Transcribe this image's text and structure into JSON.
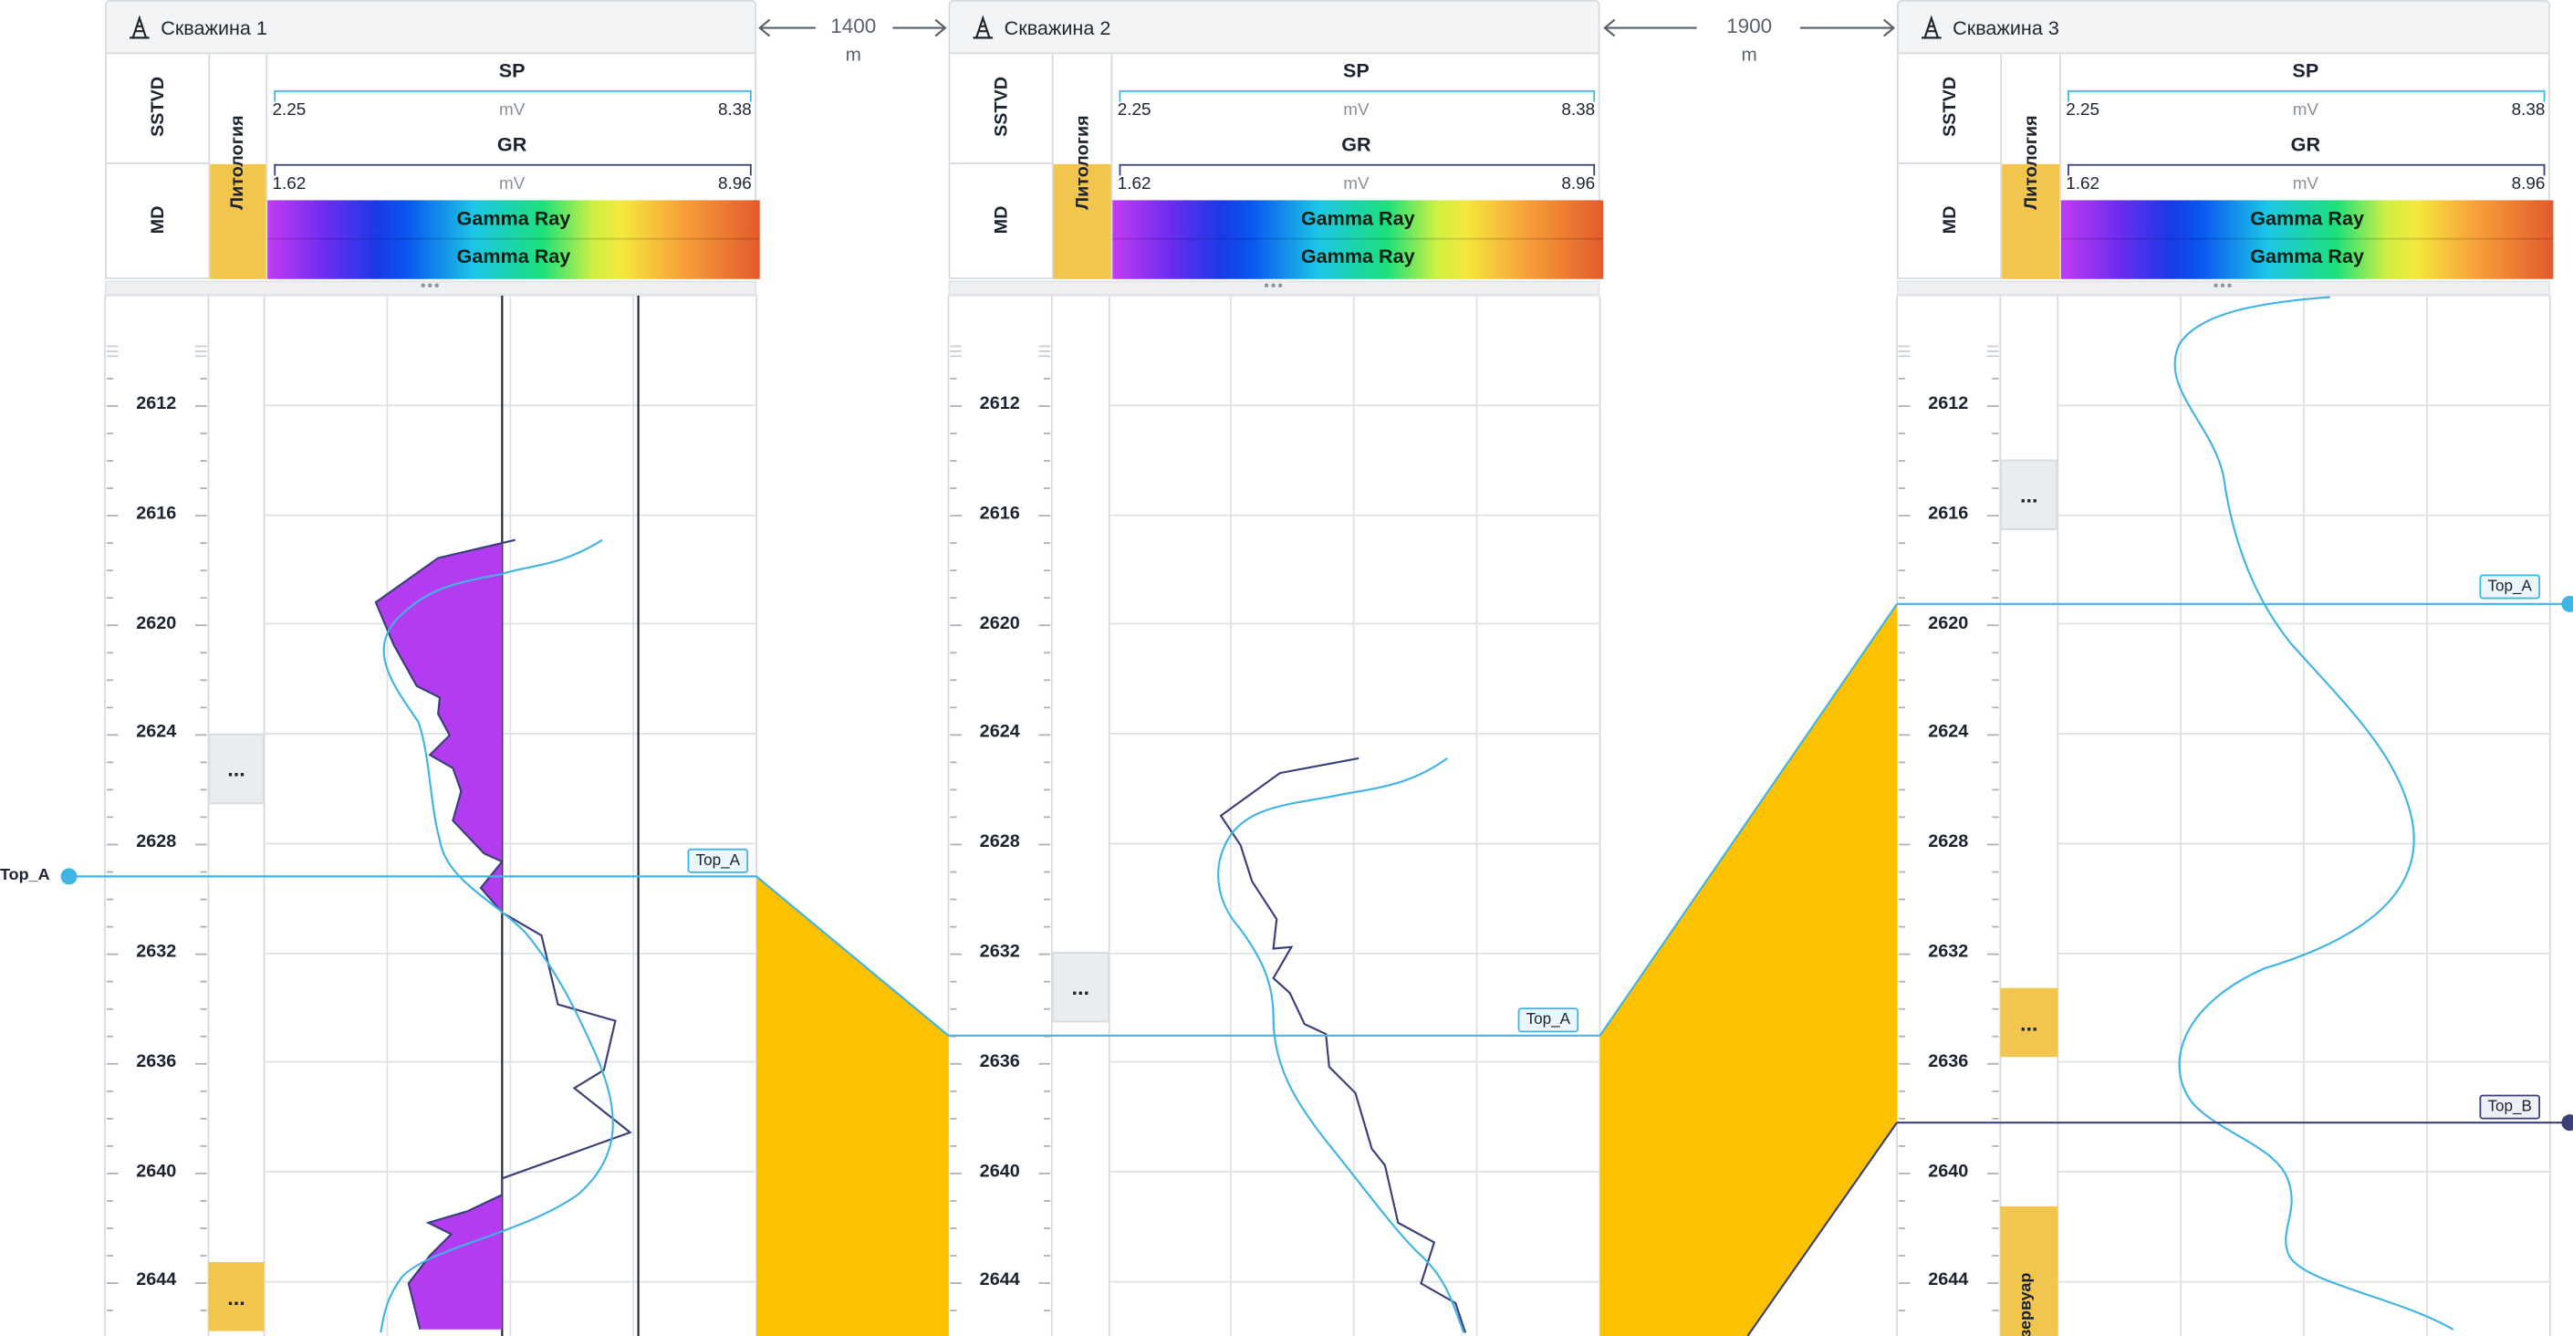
{
  "wells": [
    {
      "title": "Скважина 1",
      "track_labels": {
        "depth_top": "SSTVD",
        "depth_bottom": "MD",
        "lithology": "Литология"
      },
      "curves": [
        {
          "name": "SP",
          "min": "2.25",
          "max": "8.38",
          "unit": "mV"
        },
        {
          "name": "GR",
          "min": "1.62",
          "max": "8.96",
          "unit": "mV"
        }
      ],
      "gradient_labels": [
        "Gamma Ray",
        "Gamma Ray"
      ],
      "depth_ticks": [
        "2612",
        "2616",
        "2620",
        "2624",
        "2628",
        "2632",
        "2636",
        "2640",
        "2644"
      ],
      "lith_blocks": [
        "...",
        "..."
      ],
      "top_tag": "Top_A",
      "side_tag": "Top_A"
    },
    {
      "title": "Скважина 2",
      "track_labels": {
        "depth_top": "SSTVD",
        "depth_bottom": "MD",
        "lithology": "Литология"
      },
      "curves": [
        {
          "name": "SP",
          "min": "2.25",
          "max": "8.38",
          "unit": "mV"
        },
        {
          "name": "GR",
          "min": "1.62",
          "max": "8.96",
          "unit": "mV"
        }
      ],
      "gradient_labels": [
        "Gamma Ray",
        "Gamma Ray"
      ],
      "depth_ticks": [
        "2612",
        "2616",
        "2620",
        "2624",
        "2628",
        "2632",
        "2636",
        "2640",
        "2644"
      ],
      "lith_blocks": [
        "..."
      ],
      "top_tag": "Top_A"
    },
    {
      "title": "Скважина 3",
      "track_labels": {
        "depth_top": "SSTVD",
        "depth_bottom": "MD",
        "lithology": "Литология"
      },
      "curves": [
        {
          "name": "SP",
          "min": "2.25",
          "max": "8.38",
          "unit": "mV"
        },
        {
          "name": "GR",
          "min": "1.62",
          "max": "8.96",
          "unit": "mV"
        }
      ],
      "gradient_labels": [
        "Gamma Ray",
        "Gamma Ray"
      ],
      "depth_ticks": [
        "2612",
        "2616",
        "2620",
        "2624",
        "2628",
        "2632",
        "2636",
        "2640",
        "2644"
      ],
      "lith_blocks": [
        "...",
        "..."
      ],
      "lith_reservoir": "езервуар",
      "top_tags": [
        "Top_A",
        "Top_B"
      ]
    }
  ],
  "distances": [
    {
      "value": "1400",
      "unit": "m"
    },
    {
      "value": "1900",
      "unit": "m"
    }
  ],
  "handle_glyph": "•••",
  "colors": {
    "header_bg": "#f2f4f5",
    "grid": "#dde2e7",
    "sp_curve": "#41b4e6",
    "gr_curve": "#3b3f77",
    "gr_fill": "#b43cf0",
    "correlation_fill": "#fcc200",
    "lith_yellow": "#f2c64e",
    "top_a_line": "#41b4e6",
    "top_b_line": "#3b3f77"
  },
  "icons": {
    "well": "oil-rig-icon"
  }
}
